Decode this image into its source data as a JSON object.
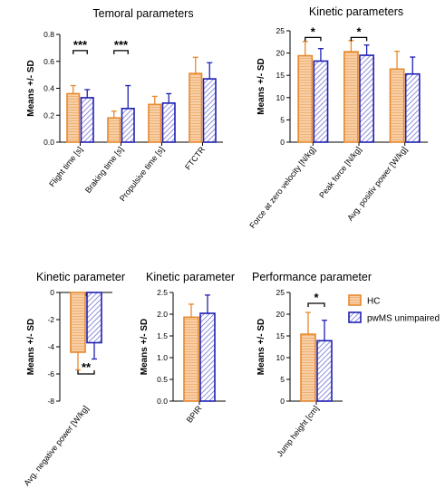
{
  "colors": {
    "hc": "#e8892c",
    "hc_fill": "#f6cfa8",
    "pwms": "#1f1fb4",
    "pwms_fill": "#b8b8e8"
  },
  "legend": {
    "items": [
      {
        "label": "HC",
        "series": "hc"
      },
      {
        "label": "pwMS unimpaired",
        "series": "pwms"
      }
    ]
  },
  "chart_data": [
    {
      "id": "temporal",
      "type": "bar",
      "title": "Temoral parameters",
      "ylabel": "Means +/- SD",
      "ylim": [
        0,
        0.8
      ],
      "yticks": [
        0,
        0.2,
        0.4,
        0.6,
        0.8
      ],
      "ytick_labels": [
        "0.0",
        "0.2",
        "0.4",
        "0.6",
        "0.8"
      ],
      "categories": [
        "Flight time [s]",
        "Braking time [s]",
        "Propulsive time [s]",
        "FTCTR"
      ],
      "series": [
        {
          "key": "hc",
          "values": [
            0.36,
            0.18,
            0.28,
            0.51
          ],
          "sd": [
            0.06,
            0.05,
            0.06,
            0.12
          ]
        },
        {
          "key": "pwms",
          "values": [
            0.33,
            0.25,
            0.29,
            0.47
          ],
          "sd": [
            0.06,
            0.17,
            0.07,
            0.12
          ]
        }
      ],
      "significance": [
        {
          "category": 0,
          "label": "***",
          "y": 0.68
        },
        {
          "category": 1,
          "label": "***",
          "y": 0.68
        }
      ]
    },
    {
      "id": "kinetic1",
      "type": "bar",
      "title": "Kinetic parameters",
      "ylabel": "Means +/- SD",
      "ylim": [
        0,
        25
      ],
      "yticks": [
        0,
        5,
        10,
        15,
        20,
        25
      ],
      "ytick_labels": [
        "0",
        "5",
        "10",
        "15",
        "20",
        "25"
      ],
      "categories": [
        "Force at zero velocity [N/kg]",
        "Peak force [N/kg]",
        "Avg. positiv power [W/kg]"
      ],
      "series": [
        {
          "key": "hc",
          "values": [
            19.4,
            20.3,
            16.4
          ],
          "sd": [
            3.2,
            2.5,
            4.0
          ]
        },
        {
          "key": "pwms",
          "values": [
            18.2,
            19.5,
            15.3
          ],
          "sd": [
            2.8,
            2.3,
            3.8
          ]
        }
      ],
      "significance": [
        {
          "category": 0,
          "label": "*",
          "y": 23.5
        },
        {
          "category": 1,
          "label": "*",
          "y": 23.5
        }
      ]
    },
    {
      "id": "kinetic_neg",
      "type": "bar",
      "title": "Kinetic parameter",
      "ylabel": "Means +/- SD",
      "ylim": [
        -8,
        0
      ],
      "yticks": [
        0,
        -2,
        -4,
        -6,
        -8
      ],
      "ytick_labels": [
        "0",
        "-2",
        "-4",
        "-6",
        "-8"
      ],
      "categories": [
        "Avg. negative power [W/kg]"
      ],
      "series": [
        {
          "key": "hc",
          "values": [
            -4.4
          ],
          "sd": [
            1.3
          ]
        },
        {
          "key": "pwms",
          "values": [
            -3.7
          ],
          "sd": [
            1.2
          ]
        }
      ],
      "significance": [
        {
          "category": 0,
          "label": "**",
          "y": -6.0
        }
      ]
    },
    {
      "id": "bpir",
      "type": "bar",
      "title": "Kinetic parameter",
      "ylabel": "Means +/- SD",
      "ylim": [
        0,
        2.5
      ],
      "yticks": [
        0,
        0.5,
        1.0,
        1.5,
        2.0,
        2.5
      ],
      "ytick_labels": [
        "0.0",
        "0.5",
        "1.0",
        "1.5",
        "2.0",
        "2.5"
      ],
      "categories": [
        "BPIR"
      ],
      "series": [
        {
          "key": "hc",
          "values": [
            1.93
          ],
          "sd": [
            0.3
          ]
        },
        {
          "key": "pwms",
          "values": [
            2.02
          ],
          "sd": [
            0.42
          ]
        }
      ],
      "significance": []
    },
    {
      "id": "performance",
      "type": "bar",
      "title": "Performance parameter",
      "ylabel": "Means +/- SD",
      "ylim": [
        0,
        25
      ],
      "yticks": [
        0,
        5,
        10,
        15,
        20,
        25
      ],
      "ytick_labels": [
        "0",
        "5",
        "10",
        "15",
        "20",
        "25"
      ],
      "categories": [
        "Jump height [cm]"
      ],
      "series": [
        {
          "key": "hc",
          "values": [
            15.4
          ],
          "sd": [
            5.0
          ]
        },
        {
          "key": "pwms",
          "values": [
            13.9
          ],
          "sd": [
            4.7
          ]
        }
      ],
      "significance": [
        {
          "category": 0,
          "label": "*",
          "y": 22.5
        }
      ]
    }
  ]
}
